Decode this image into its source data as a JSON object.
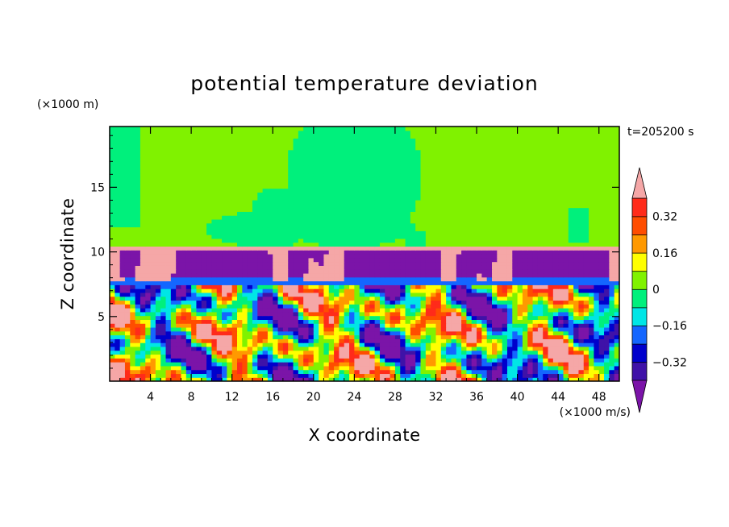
{
  "chart_data": {
    "type": "heatmap",
    "title": "potential temperature deviation",
    "xlabel": "X coordinate",
    "ylabel": "Z coordinate",
    "x_unit": "(×1000 m/s)",
    "y_unit": "(×1000 m)",
    "time_label": "t=205200 s",
    "xlim": [
      0,
      50
    ],
    "ylim": [
      0,
      19.7
    ],
    "x_ticks": [
      4,
      8,
      12,
      16,
      20,
      24,
      28,
      32,
      36,
      40,
      44,
      48
    ],
    "y_ticks": [
      5,
      10,
      15
    ],
    "colorbar": {
      "levels": [
        -0.4,
        -0.32,
        -0.24,
        -0.16,
        -0.08,
        0,
        0.08,
        0.16,
        0.24,
        0.32,
        0.4
      ],
      "labels": [
        "0.32",
        "0.16",
        "0",
        "−0.16",
        "−0.32"
      ],
      "label_values": [
        0.32,
        0.16,
        0,
        -0.16,
        -0.32
      ],
      "colors": [
        "#7b14a8",
        "#3f12a8",
        "#0000cc",
        "#1466ff",
        "#00e6e6",
        "#00f07c",
        "#80f200",
        "#ffff00",
        "#ff9900",
        "#ff4d00",
        "#ff2b1a",
        "#f5a7a7"
      ]
    },
    "regions": {
      "upper_layer": {
        "z_range": [
          10.5,
          19.7
        ],
        "base_value": 0.04,
        "patches_value": -0.02
      },
      "stable_layer": {
        "z_range": [
          7.5,
          10.5
        ],
        "values": [
          -0.45,
          0.45
        ]
      },
      "convective_layer": {
        "z_range": [
          0,
          7.5
        ],
        "value_range": [
          -0.45,
          0.45
        ]
      }
    }
  }
}
